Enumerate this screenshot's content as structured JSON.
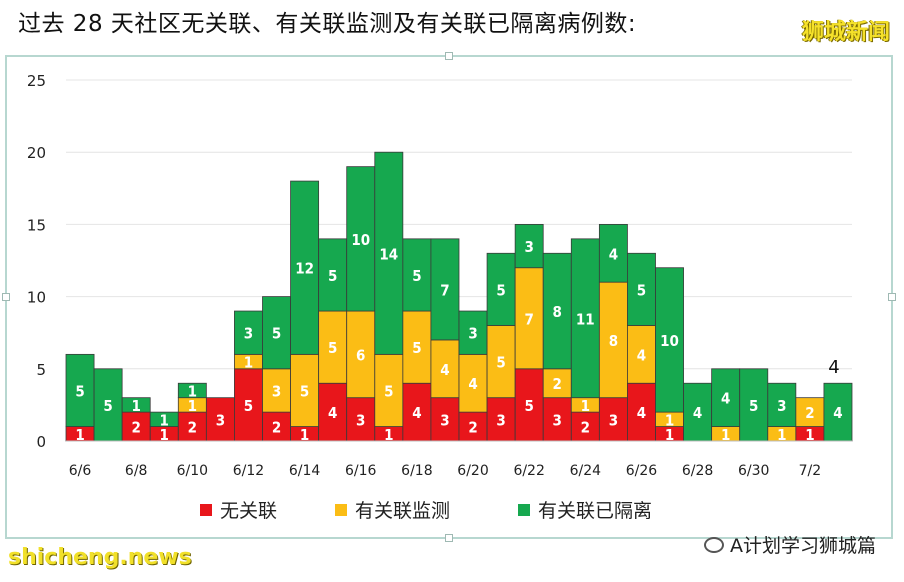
{
  "header": {
    "title": "过去 28 天社区无关联、有关联监测及有关联已隔离病例数:",
    "brand": "狮城新闻"
  },
  "footer": {
    "watermark": "shicheng.news",
    "account": "A计划学习狮城篇",
    "account_icon": "wechat-icon"
  },
  "chart_data": {
    "type": "bar",
    "stacked": true,
    "title": "",
    "xlabel": "",
    "ylabel": "",
    "ylim": [
      0,
      25
    ],
    "yticks": [
      0,
      5,
      10,
      15,
      20,
      25
    ],
    "grid": true,
    "legend_position": "bottom",
    "categories": [
      "6/6",
      "6/7",
      "6/8",
      "6/9",
      "6/10",
      "6/11",
      "6/12",
      "6/13",
      "6/14",
      "6/15",
      "6/16",
      "6/17",
      "6/18",
      "6/19",
      "6/20",
      "6/21",
      "6/22",
      "6/23",
      "6/24",
      "6/25",
      "6/26",
      "6/27",
      "6/28",
      "6/29",
      "6/30",
      "7/1",
      "7/2",
      "7/3"
    ],
    "tick_labels": [
      "6/6",
      "6/8",
      "6/10",
      "6/12",
      "6/14",
      "6/16",
      "6/18",
      "6/20",
      "6/22",
      "6/24",
      "6/26",
      "6/28",
      "6/30",
      "7/2"
    ],
    "series": [
      {
        "name": "无关联",
        "color": "#e8161b",
        "values": [
          1,
          0,
          2,
          1,
          2,
          3,
          5,
          2,
          1,
          4,
          3,
          1,
          4,
          3,
          2,
          3,
          5,
          3,
          2,
          3,
          4,
          1,
          0,
          0,
          0,
          0,
          1,
          0
        ]
      },
      {
        "name": "有关联监测",
        "color": "#fbbd15",
        "values": [
          0,
          0,
          0,
          0,
          1,
          0,
          1,
          3,
          5,
          5,
          6,
          5,
          5,
          4,
          4,
          5,
          7,
          2,
          1,
          8,
          4,
          1,
          0,
          1,
          0,
          1,
          2,
          0
        ]
      },
      {
        "name": "有关联已隔离",
        "color": "#16a84f",
        "values": [
          5,
          5,
          1,
          1,
          1,
          0,
          3,
          5,
          12,
          5,
          10,
          14,
          5,
          7,
          3,
          5,
          3,
          8,
          11,
          4,
          5,
          10,
          4,
          4,
          5,
          3,
          0,
          4
        ]
      }
    ],
    "annotations": [
      {
        "text": "4",
        "category": "7/3"
      }
    ]
  }
}
